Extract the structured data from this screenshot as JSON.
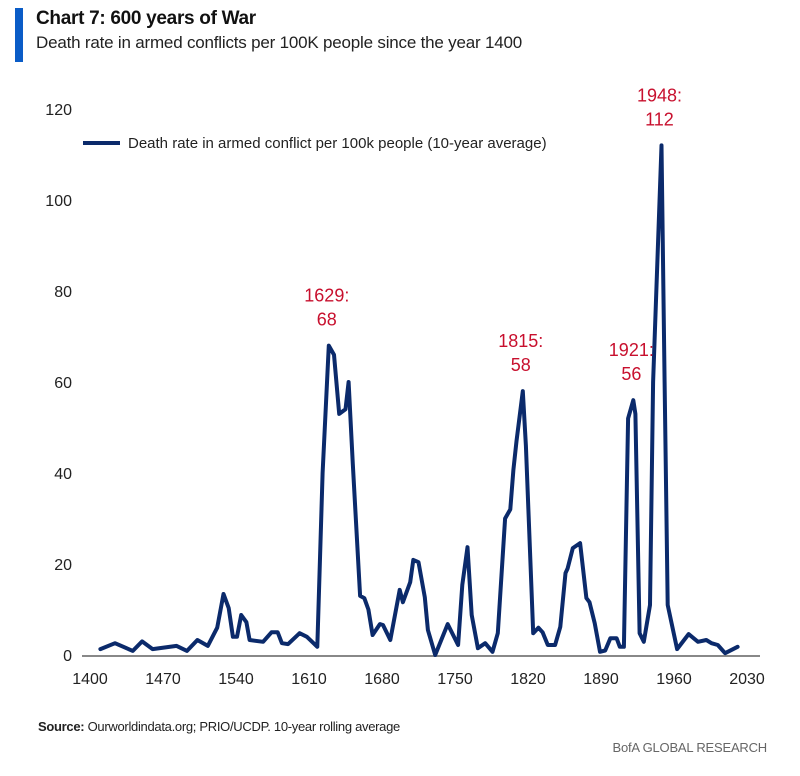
{
  "header": {
    "title": "Chart 7: 600 years of War",
    "subtitle": "Death rate in armed conflicts per 100K people since the year 1400"
  },
  "footer": {
    "source_label": "Source:",
    "source_text": "Ourworldindata.org; PRIO/UCDP. 10-year rolling average",
    "brand": "BofA GLOBAL RESEARCH"
  },
  "colors": {
    "line": "#0b2a6b",
    "annotation": "#c8102e",
    "accent": "#0a5cc7"
  },
  "chart_data": {
    "type": "line",
    "title": "Chart 7: 600 years of War",
    "subtitle": "Death rate in armed conflicts per 100K people since the year 1400",
    "xlabel": "",
    "ylabel": "",
    "xlim": [
      1400,
      2030
    ],
    "ylim": [
      0,
      120
    ],
    "xticks": [
      "1400",
      "1470",
      "1540",
      "1610",
      "1680",
      "1750",
      "1820",
      "1890",
      "1960",
      "2030"
    ],
    "yticks": [
      "0",
      "20",
      "40",
      "60",
      "80",
      "100",
      "120"
    ],
    "grid": false,
    "legend_position": "top-left",
    "series": [
      {
        "name": "Death rate in armed conflict per 100k people (10-year average)",
        "x": [
          1410,
          1424,
          1441,
          1450,
          1460,
          1483,
          1493,
          1503,
          1513,
          1522,
          1528,
          1533,
          1537,
          1541,
          1545,
          1550,
          1553,
          1566,
          1574,
          1580,
          1584,
          1590,
          1601,
          1608,
          1618,
          1623,
          1629,
          1634,
          1639,
          1645,
          1648,
          1652,
          1659,
          1663,
          1667,
          1671,
          1678,
          1681,
          1688,
          1697,
          1700,
          1707,
          1710,
          1715,
          1721,
          1724,
          1731,
          1743,
          1753,
          1757,
          1762,
          1766,
          1772,
          1779,
          1786,
          1791,
          1798,
          1803,
          1806,
          1809,
          1815,
          1818,
          1825,
          1830,
          1834,
          1839,
          1846,
          1851,
          1856,
          1858,
          1863,
          1870,
          1876,
          1879,
          1884,
          1889,
          1894,
          1899,
          1905,
          1908,
          1912,
          1916,
          1921,
          1923,
          1927,
          1931,
          1937,
          1940,
          1948,
          1951,
          1954,
          1963,
          1974,
          1983,
          1991,
          1996,
          2002,
          2009,
          2021
        ],
        "y": [
          1.3,
          2.6,
          0.9,
          3,
          1.3,
          2,
          0.9,
          3.3,
          2,
          6,
          13.4,
          10.3,
          4,
          4,
          8.8,
          7.2,
          3.3,
          2.9,
          5,
          5,
          2.6,
          2.4,
          4.8,
          4,
          1.8,
          40,
          68,
          66,
          53,
          54,
          60,
          42,
          13,
          12.5,
          10,
          4.4,
          6.8,
          6.6,
          3.3,
          14.3,
          11.6,
          16,
          20.9,
          20.4,
          12.7,
          5.5,
          0,
          6.8,
          2.2,
          15.4,
          23.7,
          8.8,
          1.5,
          2.6,
          0.7,
          4.8,
          30,
          32,
          40.7,
          47,
          58,
          46,
          4.8,
          6,
          5,
          2.2,
          2.2,
          6.2,
          18,
          19,
          23.5,
          24.6,
          12.5,
          11.6,
          7,
          0.7,
          1,
          3.7,
          3.7,
          1.8,
          1.8,
          52,
          56,
          53,
          4.8,
          2.9,
          11,
          60,
          112,
          60,
          11,
          1.3,
          4.6,
          2.9,
          3.3,
          2.6,
          2.2,
          0.4,
          1.8
        ]
      }
    ],
    "annotations": [
      {
        "year": 1629,
        "label": "1629:",
        "value_label": "68"
      },
      {
        "year": 1815,
        "label": "1815:",
        "value_label": "58"
      },
      {
        "year": 1921,
        "label": "1921:",
        "value_label": "56"
      },
      {
        "year": 1948,
        "label": "1948:",
        "value_label": "112"
      }
    ]
  }
}
